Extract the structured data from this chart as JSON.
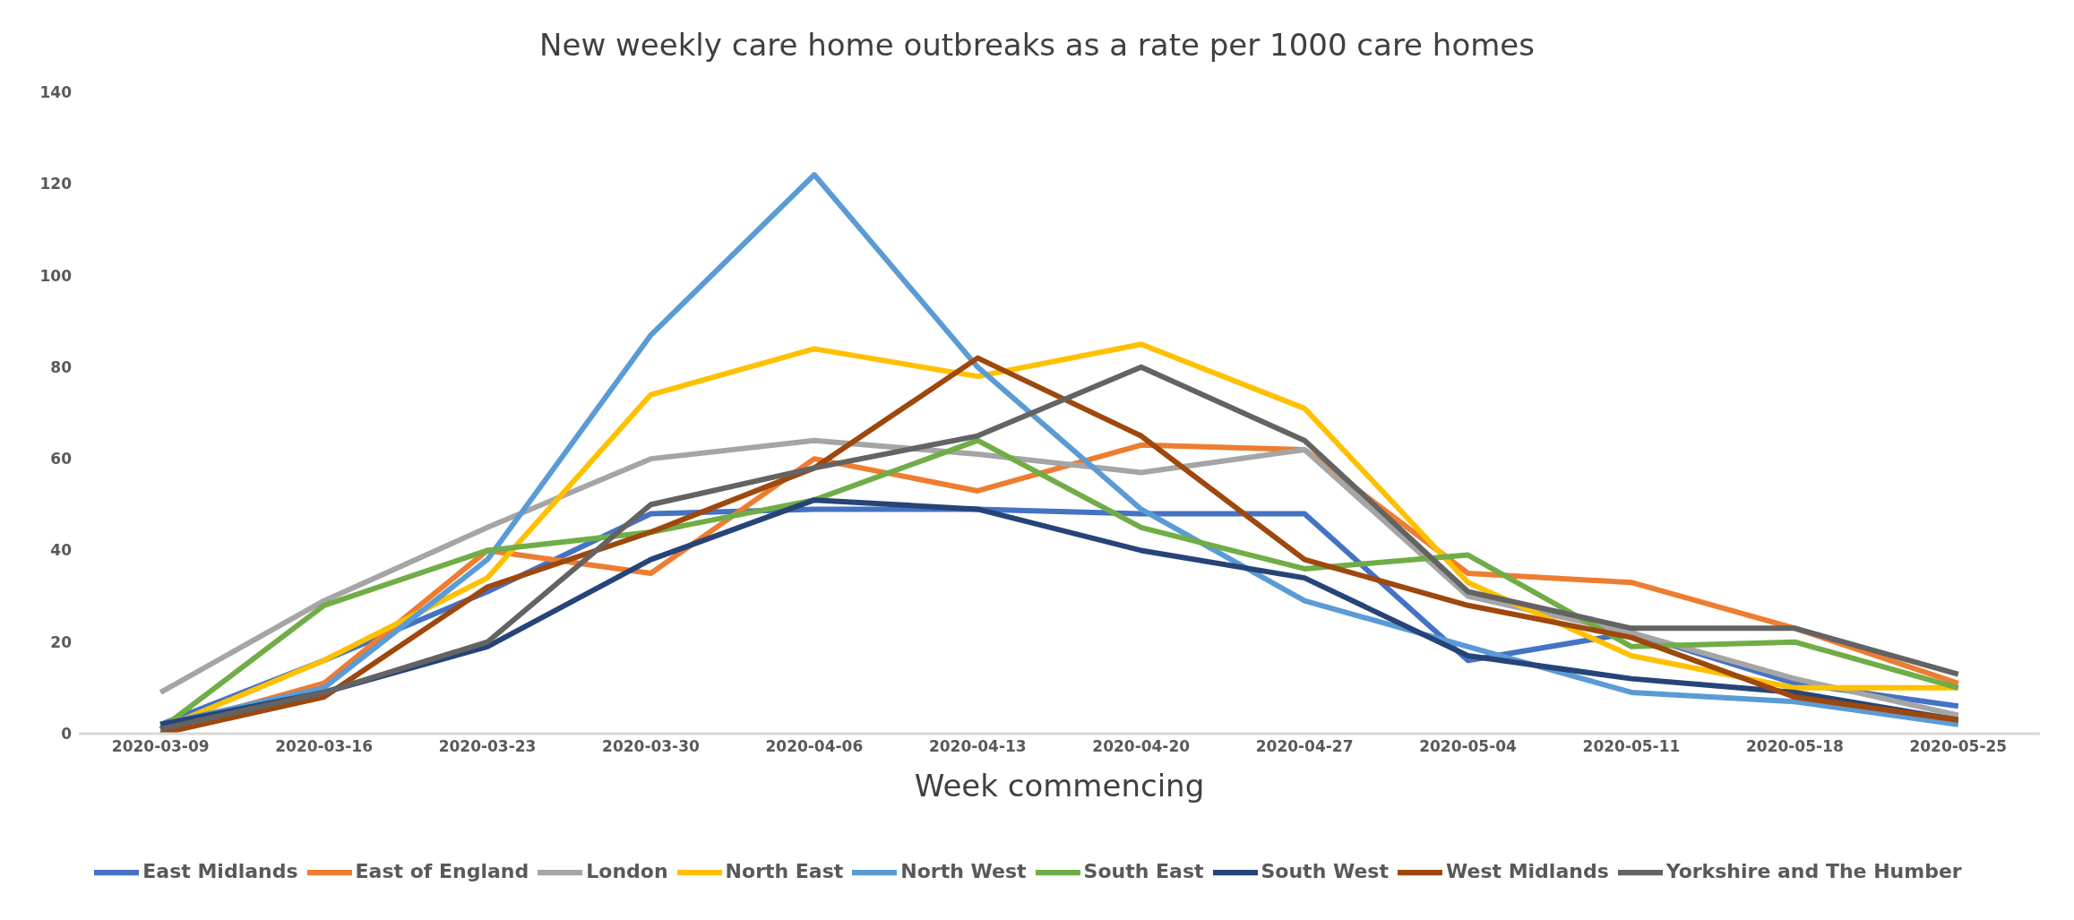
{
  "chart_data": {
    "type": "line",
    "title": "New weekly care home outbreaks as a rate per 1000 care homes",
    "xlabel": "Week commencing",
    "categories": [
      "2020-03-09",
      "2020-03-16",
      "2020-03-23",
      "2020-03-30",
      "2020-04-06",
      "2020-04-13",
      "2020-04-20",
      "2020-04-27",
      "2020-05-04",
      "2020-05-11",
      "2020-05-18",
      "2020-05-25"
    ],
    "ylim": [
      0,
      140
    ],
    "yticks": [
      0,
      20,
      40,
      60,
      80,
      100,
      120,
      140
    ],
    "legend": "bottom",
    "marker": "none",
    "line_style": "solid",
    "series": [
      {
        "name": "East Midlands",
        "color": "#4472c4",
        "values": [
          2,
          16,
          31,
          48,
          49,
          49,
          48,
          48,
          16,
          22,
          11,
          6
        ]
      },
      {
        "name": "East of England",
        "color": "#ed7d31",
        "values": [
          1,
          11,
          40,
          35,
          60,
          53,
          63,
          62,
          35,
          33,
          23,
          11
        ]
      },
      {
        "name": "London",
        "color": "#a5a5a5",
        "values": [
          9,
          29,
          45,
          60,
          64,
          61,
          57,
          62,
          30,
          22,
          12,
          4
        ]
      },
      {
        "name": "North East",
        "color": "#ffc000",
        "values": [
          1,
          16,
          34,
          74,
          84,
          78,
          85,
          71,
          33,
          17,
          10,
          10
        ]
      },
      {
        "name": "North West",
        "color": "#5b9bd5",
        "values": [
          2,
          10,
          38,
          87,
          122,
          80,
          49,
          29,
          19,
          9,
          7,
          2
        ]
      },
      {
        "name": "South East",
        "color": "#70ad47",
        "values": [
          1,
          28,
          40,
          44,
          51,
          64,
          45,
          36,
          39,
          19,
          20,
          10
        ]
      },
      {
        "name": "South West",
        "color": "#264478",
        "values": [
          2,
          9,
          19,
          38,
          51,
          49,
          40,
          34,
          17,
          12,
          9,
          3
        ]
      },
      {
        "name": "West Midlands",
        "color": "#9e480e",
        "values": [
          0,
          8,
          32,
          44,
          58,
          82,
          65,
          38,
          28,
          21,
          8,
          3
        ]
      },
      {
        "name": "Yorkshire and The Humber",
        "color": "#636363",
        "values": [
          1,
          9,
          20,
          50,
          58,
          65,
          80,
          64,
          31,
          23,
          23,
          13
        ]
      }
    ]
  }
}
